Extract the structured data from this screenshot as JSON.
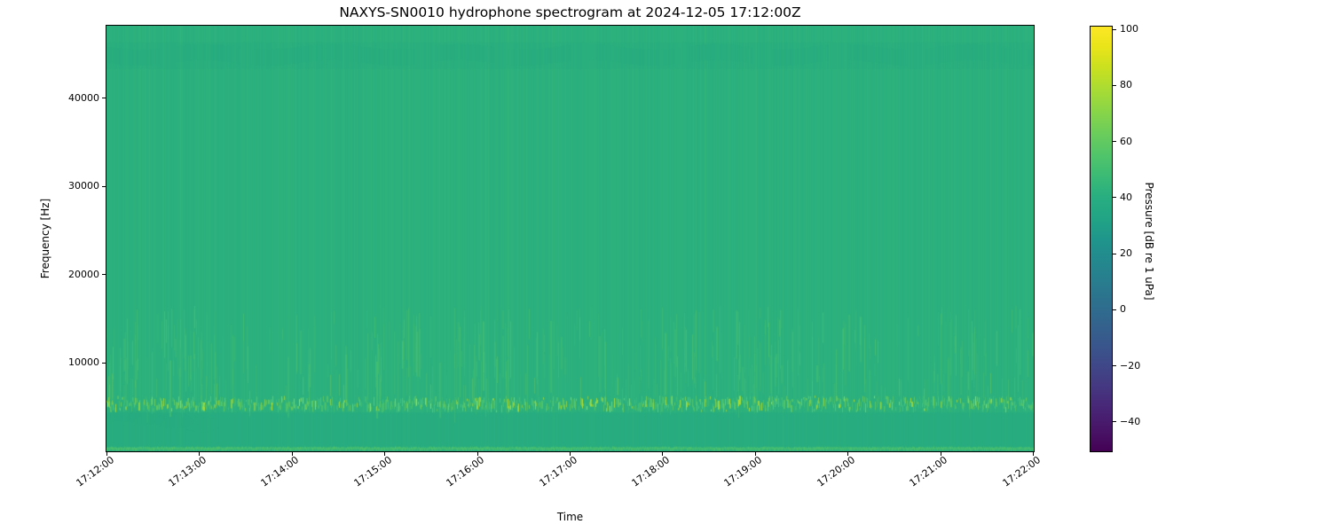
{
  "figure": {
    "kind": "matplotlib-style figure",
    "background": "#ffffff",
    "text_color": "#000000"
  },
  "chart_data": {
    "type": "heatmap",
    "subtype": "hydrophone-spectrogram",
    "title": "NAXYS-SN0010 hydrophone spectrogram at 2024-12-05 17:12:00Z",
    "xlabel": "Time",
    "ylabel": "Frequency [Hz]",
    "x_tick_labels": [
      "17:12:00",
      "17:13:00",
      "17:14:00",
      "17:15:00",
      "17:16:00",
      "17:17:00",
      "17:18:00",
      "17:19:00",
      "17:20:00",
      "17:21:00",
      "17:22:00"
    ],
    "x_range_seconds": [
      0,
      600
    ],
    "y_tick_values": [
      10000,
      20000,
      30000,
      40000
    ],
    "y_tick_labels": [
      "10000",
      "20000",
      "30000",
      "40000"
    ],
    "y_range_hz": [
      0,
      48200
    ],
    "grid": false,
    "legend": "none",
    "colormap": "viridis",
    "colorbar": {
      "label": "Pressure [dB re 1 uPa]",
      "tick_values": [
        100,
        80,
        60,
        40,
        20,
        0,
        -20,
        -40
      ],
      "tick_labels": [
        "100",
        "80",
        "60",
        "40",
        "20",
        "0",
        "−20",
        "−40"
      ],
      "vmin": -50.5,
      "vmax": 101,
      "position": "right"
    },
    "viridis_stops": [
      [
        0.0,
        "#440154"
      ],
      [
        0.05,
        "#481467"
      ],
      [
        0.1,
        "#482576"
      ],
      [
        0.15,
        "#453781"
      ],
      [
        0.2,
        "#3f4788"
      ],
      [
        0.25,
        "#39568c"
      ],
      [
        0.3,
        "#33638d"
      ],
      [
        0.35,
        "#2d708e"
      ],
      [
        0.4,
        "#287d8e"
      ],
      [
        0.45,
        "#23898e"
      ],
      [
        0.5,
        "#1f968b"
      ],
      [
        0.55,
        "#21a585"
      ],
      [
        0.6,
        "#28ae80"
      ],
      [
        0.65,
        "#3cbb75"
      ],
      [
        0.7,
        "#52c569"
      ],
      [
        0.75,
        "#6ccd5a"
      ],
      [
        0.8,
        "#89d548"
      ],
      [
        0.85,
        "#a8db34"
      ],
      [
        0.9,
        "#c8e020"
      ],
      [
        0.95,
        "#e8e419"
      ],
      [
        1.0,
        "#fde725"
      ]
    ],
    "field": {
      "background_db": 42,
      "column_noise_db": 1.1,
      "seed": 1337,
      "features": [
        {
          "name": "low-quiet-region",
          "style": "fill",
          "hz": [
            0,
            4400
          ],
          "delta_db": -5,
          "alpha": 0.55
        },
        {
          "name": "low-left-smudge",
          "style": "smudge",
          "hz": [
            2500,
            5200
          ],
          "delta_db": -6,
          "t_range_s": [
            0,
            70
          ],
          "alpha": 0.16
        },
        {
          "name": "top-dark-band",
          "style": "mottled",
          "hz": [
            43300,
            46300
          ],
          "delta_db": -4,
          "alpha": 0.45
        },
        {
          "name": "faint-full-height-streaks",
          "style": "faint-columns",
          "hz": [
            0,
            48200
          ],
          "delta_db": [
            1,
            3.5
          ],
          "density": 0.1,
          "alpha": 0.16
        },
        {
          "name": "mid-streak-band",
          "style": "vertical-streaks",
          "hz": [
            7500,
            16500
          ],
          "delta_db": [
            2.5,
            13
          ],
          "density": 0.55
        },
        {
          "name": "tonal-dash-band",
          "style": "dense-dashes",
          "hz": [
            5000,
            6300
          ],
          "delta_db": [
            6,
            40
          ],
          "density": 0.78,
          "bright_fraction": 0.2
        },
        {
          "name": "seafloor-bright-line",
          "style": "bright-line",
          "hz": [
            200,
            550
          ],
          "delta_db": 12
        }
      ]
    }
  }
}
